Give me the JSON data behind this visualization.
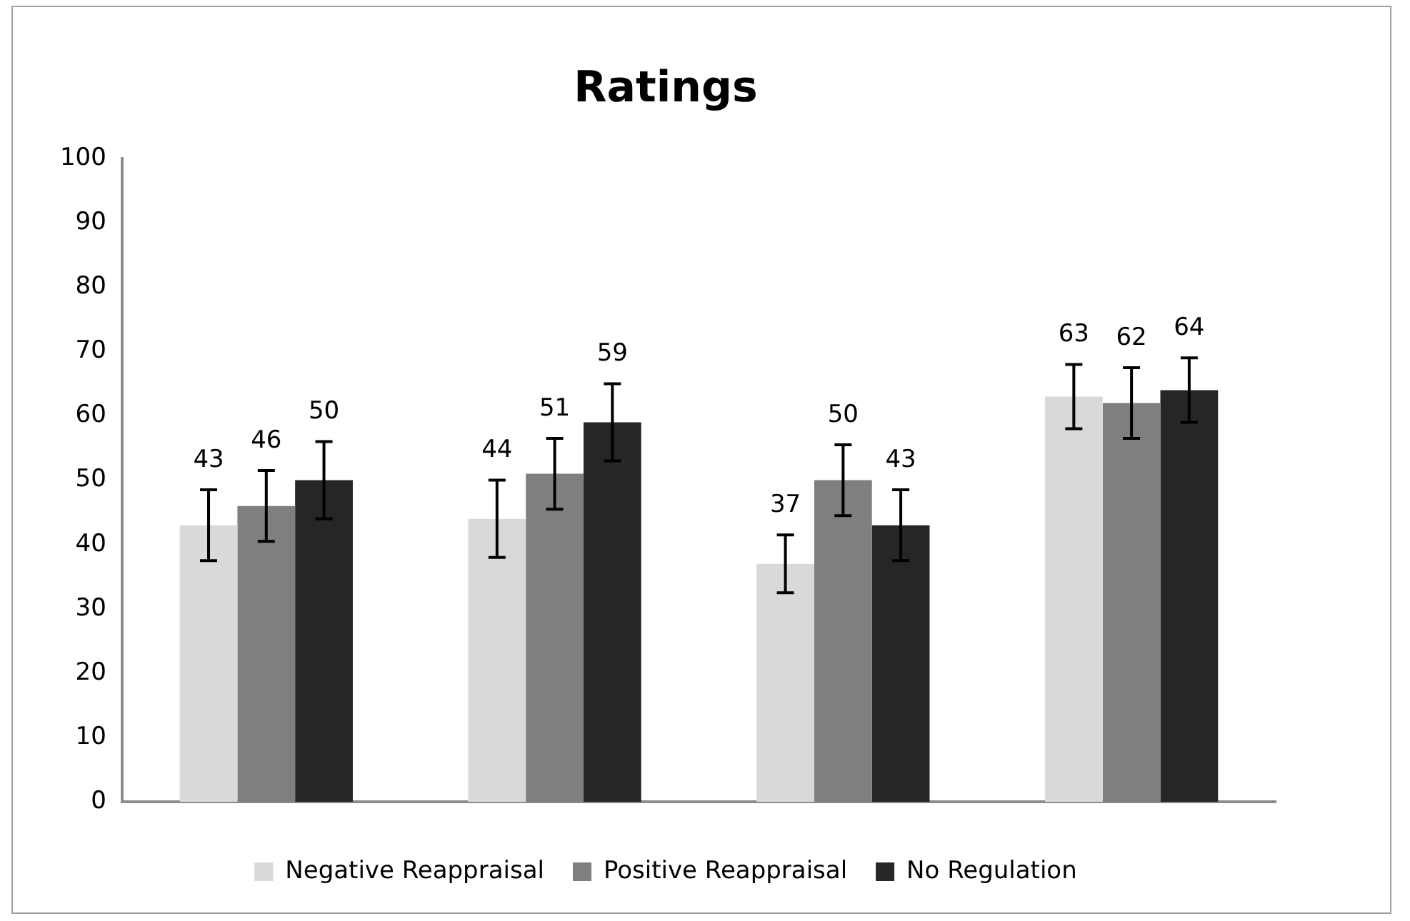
{
  "chart_data": {
    "type": "bar",
    "title": "Ratings",
    "categories": [
      null,
      null,
      null,
      null
    ],
    "series": [
      {
        "name": "Negative Reappraisal",
        "color": "#d9d9d9",
        "values": [
          43,
          44,
          37,
          63
        ],
        "errors": [
          5.5,
          6,
          4.5,
          5
        ]
      },
      {
        "name": "Positive Reappraisal",
        "color": "#7f7f7f",
        "values": [
          46,
          51,
          50,
          62
        ],
        "errors": [
          5.5,
          5.5,
          5.5,
          5.5
        ]
      },
      {
        "name": "No Regulation",
        "color": "#262626",
        "values": [
          50,
          59,
          43,
          64
        ],
        "errors": [
          6,
          6,
          5.5,
          5
        ]
      }
    ],
    "ylim": [
      0,
      100
    ],
    "yticks": [
      0,
      10,
      20,
      30,
      40,
      50,
      60,
      70,
      80,
      90,
      100
    ],
    "grid": false,
    "legend": "bottom",
    "data_labels": true
  }
}
